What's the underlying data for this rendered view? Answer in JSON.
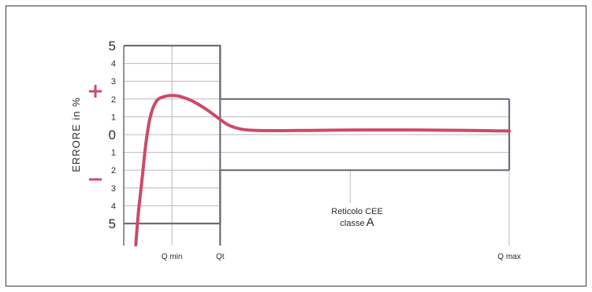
{
  "chart_data": {
    "type": "line",
    "ylabel": "ERRORE in %",
    "plus_sign": "+",
    "minus_sign": "−",
    "y_ticks": [
      {
        "label": "5",
        "value": 5,
        "major": true
      },
      {
        "label": "4",
        "value": 4,
        "major": false
      },
      {
        "label": "3",
        "value": 3,
        "major": false
      },
      {
        "label": "2",
        "value": 2,
        "major": false
      },
      {
        "label": "1",
        "value": 1,
        "major": false
      },
      {
        "label": "0",
        "value": 0,
        "major": true
      },
      {
        "label": "1",
        "value": -1,
        "major": false
      },
      {
        "label": "2",
        "value": -2,
        "major": false
      },
      {
        "label": "3",
        "value": -3,
        "major": false
      },
      {
        "label": "4",
        "value": -4,
        "major": false
      },
      {
        "label": "5",
        "value": -5,
        "major": true
      }
    ],
    "ylim": [
      -6.2,
      5.6
    ],
    "x_markers": [
      {
        "label": "Q min",
        "x": 1
      },
      {
        "label": "Qt",
        "x": 2
      },
      {
        "label": "Q max",
        "x": 8
      }
    ],
    "xlim": [
      0,
      8.2
    ],
    "envelope": [
      {
        "x": 0,
        "upper": 5,
        "lower": -5
      },
      {
        "x": 2,
        "upper": 5,
        "lower": -5
      },
      {
        "x": 2,
        "upper": 2,
        "lower": -2
      },
      {
        "x": 8,
        "upper": 2,
        "lower": -2
      }
    ],
    "series": [
      {
        "points": [
          {
            "x": 0.25,
            "y": -6.2
          },
          {
            "x": 0.3,
            "y": -4.5
          },
          {
            "x": 0.38,
            "y": -2.5
          },
          {
            "x": 0.45,
            "y": -0.7
          },
          {
            "x": 0.52,
            "y": 0.6
          },
          {
            "x": 0.6,
            "y": 1.45
          },
          {
            "x": 0.7,
            "y": 1.95
          },
          {
            "x": 0.82,
            "y": 2.12
          },
          {
            "x": 1.0,
            "y": 2.2
          },
          {
            "x": 1.2,
            "y": 2.12
          },
          {
            "x": 1.45,
            "y": 1.85
          },
          {
            "x": 1.75,
            "y": 1.35
          },
          {
            "x": 2.0,
            "y": 0.85
          },
          {
            "x": 2.2,
            "y": 0.5
          },
          {
            "x": 2.5,
            "y": 0.28
          },
          {
            "x": 3.0,
            "y": 0.22
          },
          {
            "x": 4.0,
            "y": 0.24
          },
          {
            "x": 5.0,
            "y": 0.26
          },
          {
            "x": 6.0,
            "y": 0.26
          },
          {
            "x": 7.0,
            "y": 0.24
          },
          {
            "x": 8.0,
            "y": 0.2
          }
        ],
        "color": "#cc4a68"
      }
    ],
    "annotation": {
      "line1": "Reticolo CEE",
      "line2": "classe",
      "line2_big": "A",
      "x": 4.7,
      "y": -2
    },
    "colors": {
      "curve": "#cc4a68",
      "envelope": "#6e6e78",
      "grid": "#b8b8c0",
      "sign": "#cc4a68"
    },
    "grid": true
  }
}
